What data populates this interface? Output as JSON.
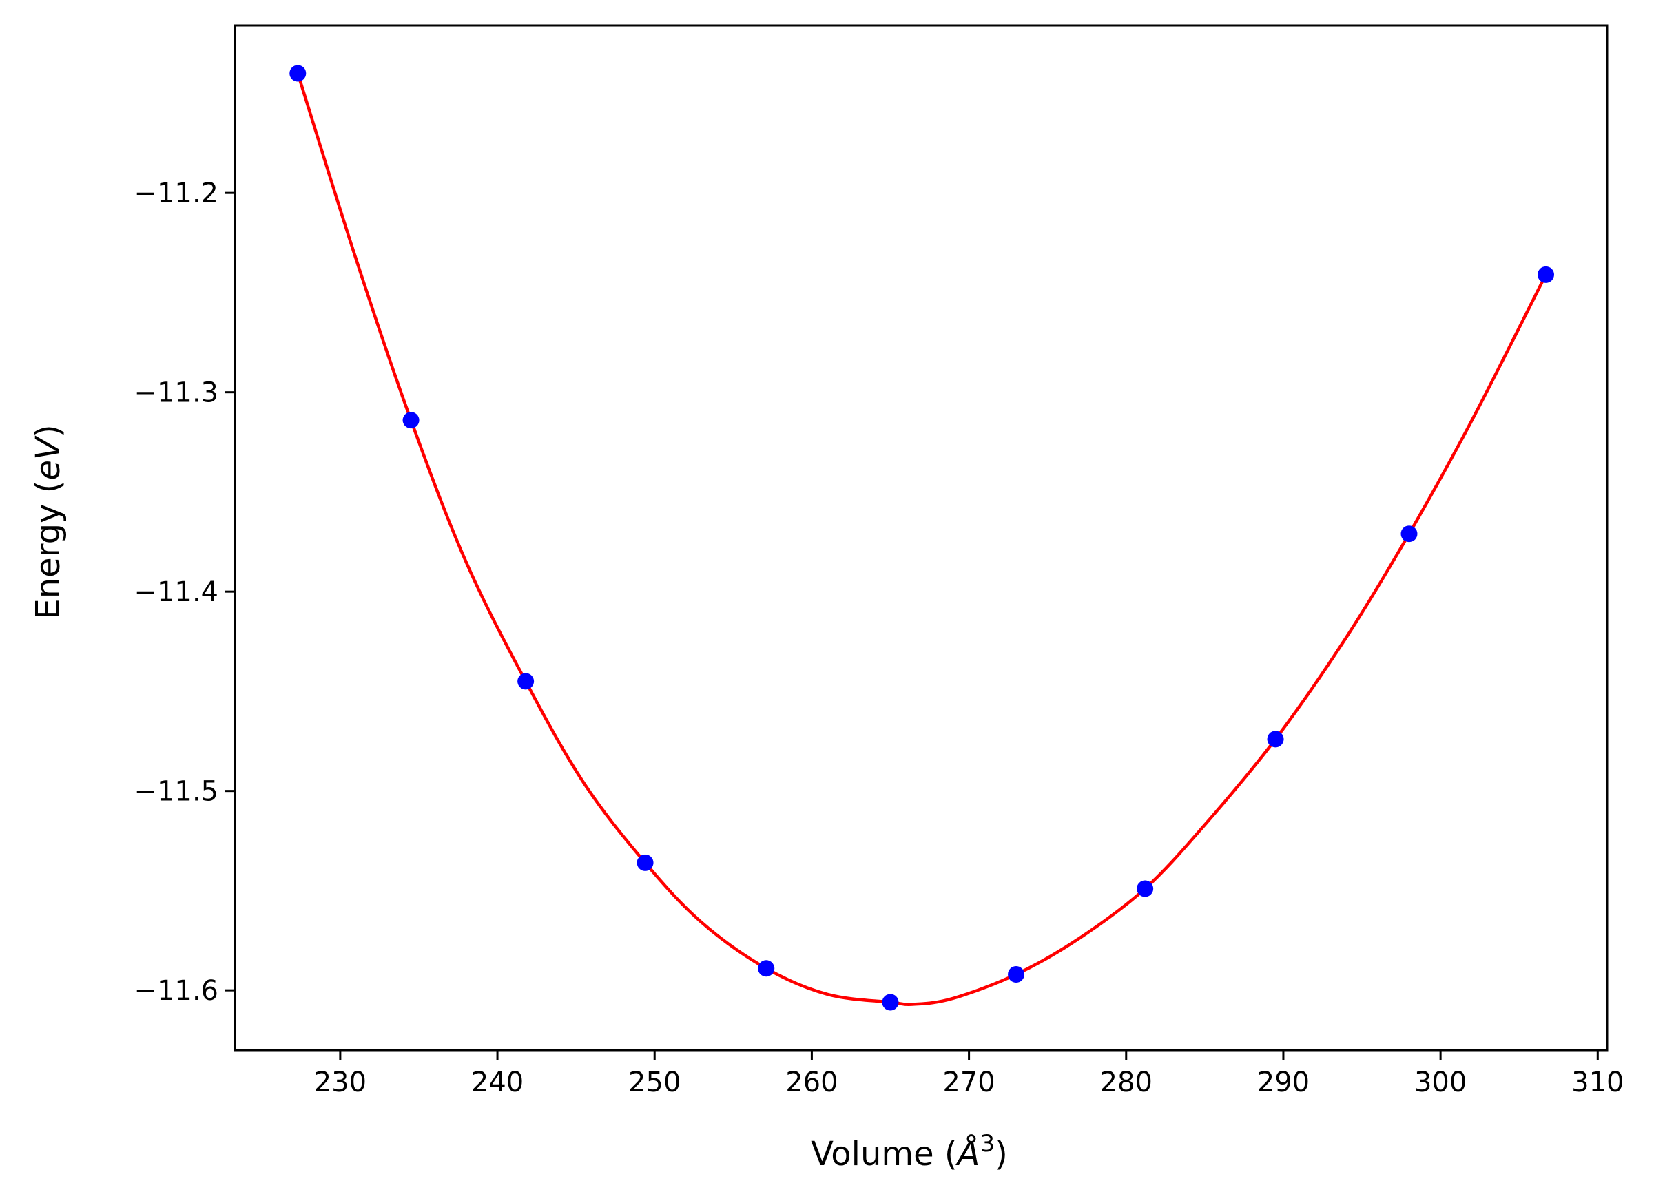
{
  "chart_data": {
    "type": "scatter",
    "title": "",
    "xlabel": "Volume",
    "xlabel_unit": "Å",
    "xlabel_unit_exp": "3",
    "ylabel": "Energy",
    "ylabel_unit": "eV",
    "xlim": [
      223.3,
      310.6
    ],
    "ylim": [
      -11.63,
      -11.116
    ],
    "xticks": [
      230,
      240,
      250,
      260,
      270,
      280,
      290,
      300,
      310
    ],
    "xtick_labels": [
      "230",
      "240",
      "250",
      "260",
      "270",
      "280",
      "290",
      "300",
      "310"
    ],
    "yticks": [
      -11.2,
      -11.3,
      -11.4,
      -11.5,
      -11.6
    ],
    "ytick_labels": [
      "−11.2",
      "−11.3",
      "−11.4",
      "−11.5",
      "−11.6"
    ],
    "grid": false,
    "legend": "none",
    "series": [
      {
        "kind": "points",
        "color": "#0000ff",
        "x": [
          227.3,
          234.5,
          241.8,
          249.4,
          257.1,
          265.0,
          273.0,
          281.2,
          289.5,
          298.0,
          306.7
        ],
        "y": [
          -11.14,
          -11.314,
          -11.445,
          -11.536,
          -11.589,
          -11.606,
          -11.592,
          -11.549,
          -11.474,
          -11.371,
          -11.241
        ]
      },
      {
        "kind": "fit-curve",
        "color": "#ff0000",
        "x": [
          227.3,
          231.0,
          234.5,
          238.0,
          241.8,
          245.5,
          249.4,
          253.0,
          257.1,
          261.0,
          265.0,
          266.5,
          269.0,
          273.0,
          277.0,
          281.2,
          285.0,
          289.5,
          294.0,
          298.0,
          302.0,
          306.7
        ],
        "y": [
          -11.14,
          -11.233,
          -11.314,
          -11.385,
          -11.445,
          -11.496,
          -11.536,
          -11.566,
          -11.589,
          -11.602,
          -11.606,
          -11.607,
          -11.604,
          -11.592,
          -11.574,
          -11.549,
          -11.517,
          -11.474,
          -11.423,
          -11.371,
          -11.314,
          -11.241
        ]
      }
    ]
  }
}
